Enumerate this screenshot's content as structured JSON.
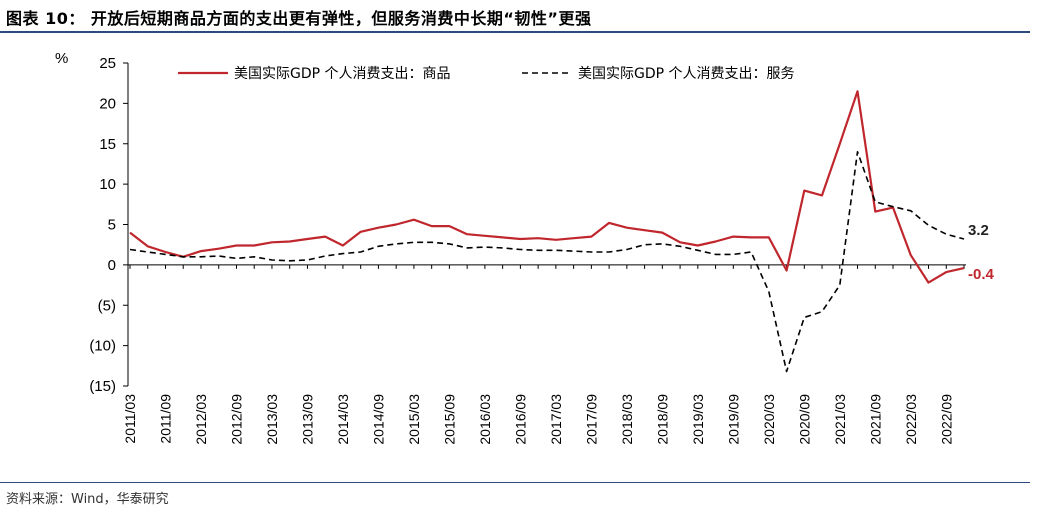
{
  "figure": {
    "title": "图表 10：  开放后短期商品方面的支出更有弹性，但服务消费中长期“韧性”更强",
    "source": "资料来源：Wind，华泰研究"
  },
  "chart_data": {
    "type": "line",
    "y_unit_label": "%",
    "ylim": [
      -15,
      25
    ],
    "y_ticks": [
      25,
      20,
      15,
      10,
      5,
      0,
      -5,
      -10,
      -15
    ],
    "y_tick_labels": [
      "25",
      "20",
      "15",
      "10",
      "5",
      "0",
      "(5)",
      "(10)",
      "(15)"
    ],
    "x": [
      "2011/03",
      "2011/06",
      "2011/09",
      "2011/12",
      "2012/03",
      "2012/06",
      "2012/09",
      "2012/12",
      "2013/03",
      "2013/06",
      "2013/09",
      "2013/12",
      "2014/03",
      "2014/06",
      "2014/09",
      "2014/12",
      "2015/03",
      "2015/06",
      "2015/09",
      "2015/12",
      "2016/03",
      "2016/06",
      "2016/09",
      "2016/12",
      "2017/03",
      "2017/06",
      "2017/09",
      "2017/12",
      "2018/03",
      "2018/06",
      "2018/09",
      "2018/12",
      "2019/03",
      "2019/06",
      "2019/09",
      "2019/12",
      "2020/03",
      "2020/06",
      "2020/09",
      "2020/12",
      "2021/03",
      "2021/06",
      "2021/09",
      "2021/12",
      "2022/03",
      "2022/06",
      "2022/09",
      "2022/12"
    ],
    "x_tick_labels": [
      "2011/03",
      "2011/09",
      "2012/03",
      "2012/09",
      "2013/03",
      "2013/09",
      "2014/03",
      "2014/09",
      "2015/03",
      "2015/09",
      "2016/03",
      "2016/09",
      "2017/03",
      "2017/09",
      "2018/03",
      "2018/09",
      "2019/03",
      "2019/09",
      "2020/03",
      "2020/09",
      "2021/03",
      "2021/09",
      "2022/03",
      "2022/09"
    ],
    "series": [
      {
        "name": "美国实际GDP 个人消费支出：商品",
        "color": "#c0272d",
        "style": "solid",
        "values": [
          4.0,
          2.3,
          1.6,
          1.0,
          1.7,
          2.0,
          2.4,
          2.4,
          2.8,
          2.9,
          3.2,
          3.5,
          2.4,
          4.1,
          4.6,
          5.0,
          5.6,
          4.8,
          4.8,
          3.8,
          3.6,
          3.4,
          3.2,
          3.3,
          3.1,
          3.3,
          3.5,
          5.2,
          4.6,
          4.3,
          4.0,
          2.8,
          2.4,
          2.9,
          3.5,
          3.4,
          3.4,
          -0.7,
          9.2,
          8.6,
          15.0,
          21.5,
          6.6,
          7.1,
          1.2,
          -2.2,
          -0.9,
          -0.4
        ]
      },
      {
        "name": "美国实际GDP 个人消费支出：服务",
        "color": "#000000",
        "style": "dashed",
        "values": [
          1.9,
          1.6,
          1.3,
          1.0,
          1.0,
          1.1,
          0.8,
          1.0,
          0.6,
          0.5,
          0.6,
          1.1,
          1.4,
          1.6,
          2.3,
          2.6,
          2.8,
          2.8,
          2.6,
          2.1,
          2.2,
          2.1,
          1.9,
          1.8,
          1.8,
          1.7,
          1.6,
          1.6,
          1.9,
          2.5,
          2.6,
          2.3,
          1.8,
          1.3,
          1.3,
          1.6,
          -3.3,
          -13.2,
          -6.5,
          -5.8,
          -2.5,
          14.0,
          7.8,
          7.2,
          6.7,
          4.9,
          3.8,
          3.2
        ]
      }
    ],
    "end_labels": [
      {
        "text": "3.2",
        "series": 1,
        "color": "#222222"
      },
      {
        "text": "-0.4",
        "series": 0,
        "color": "#c0272d"
      }
    ]
  }
}
